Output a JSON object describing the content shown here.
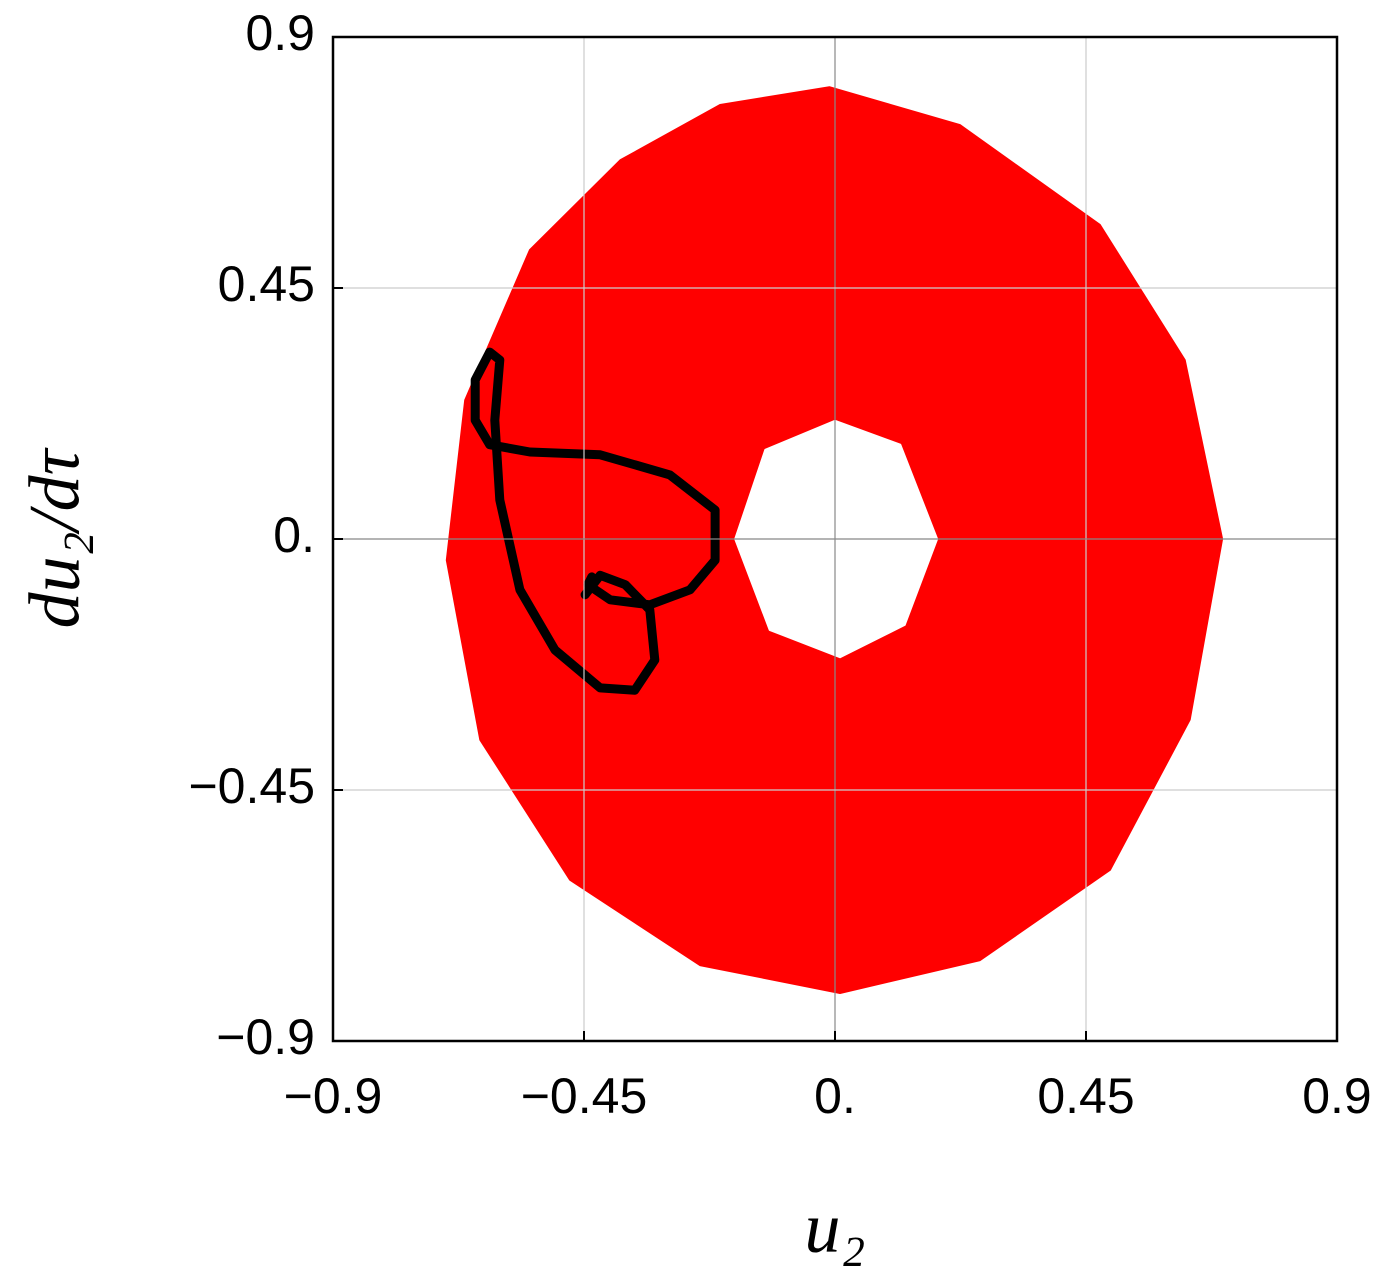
{
  "chart_data": {
    "type": "line",
    "x_label": "u₂",
    "y_label": "du₂/dτ",
    "xlim": [
      -0.9,
      0.9
    ],
    "ylim": [
      -0.9,
      0.9
    ],
    "xticks": [
      {
        "value": -0.9,
        "label": "−0.9"
      },
      {
        "value": -0.45,
        "label": "−0.45"
      },
      {
        "value": 0,
        "label": "0."
      },
      0.45,
      0.9
    ],
    "yticks": [
      {
        "value": -0.9,
        "label": "−0.9"
      },
      {
        "value": -0.45,
        "label": "−0.45"
      },
      {
        "value": 0,
        "label": "0."
      },
      0.45,
      0.9
    ],
    "grid": true,
    "series": [
      {
        "color": "#ff0000",
        "fill": true,
        "x": [
          -0.01,
          0.224,
          0.475,
          0.627,
          0.694,
          0.636,
          0.493,
          0.26,
          0.009,
          -0.242,
          -0.475,
          -0.636,
          -0.696,
          -0.663,
          -0.547,
          -0.385,
          -0.206
        ],
        "values": [
          0.81,
          0.742,
          0.563,
          0.321,
          0,
          -0.324,
          -0.593,
          -0.755,
          -0.814,
          -0.764,
          -0.611,
          -0.36,
          -0.038,
          0.249,
          0.518,
          0.679,
          0.778
        ]
      },
      {
        "color": "#ffffff",
        "fill": true,
        "x": [
          0,
          0.117,
          0.183,
          0.125,
          0.009,
          -0.117,
          -0.179,
          -0.125
        ],
        "values": [
          0.212,
          0.169,
          0,
          -0.154,
          -0.212,
          -0.163,
          0,
          0.16
        ]
      },
      {
        "color": "#000000",
        "fill": false,
        "x": [
          -0.448,
          -0.421,
          -0.376,
          -0.332,
          -0.323,
          -0.359,
          -0.421,
          -0.502,
          -0.565,
          -0.601,
          -0.61,
          -0.601,
          -0.619,
          -0.645,
          -0.645,
          -0.619,
          -0.547,
          -0.421,
          -0.296,
          -0.215,
          -0.215,
          -0.26,
          -0.332,
          -0.403,
          -0.443,
          -0.436
        ],
        "values": [
          -0.1,
          -0.065,
          -0.082,
          -0.127,
          -0.217,
          -0.271,
          -0.267,
          -0.199,
          -0.091,
          0.07,
          0.213,
          0.321,
          0.335,
          0.285,
          0.213,
          0.169,
          0.156,
          0.151,
          0.115,
          0.052,
          -0.038,
          -0.091,
          -0.118,
          -0.109,
          -0.082,
          -0.068
        ]
      }
    ]
  }
}
